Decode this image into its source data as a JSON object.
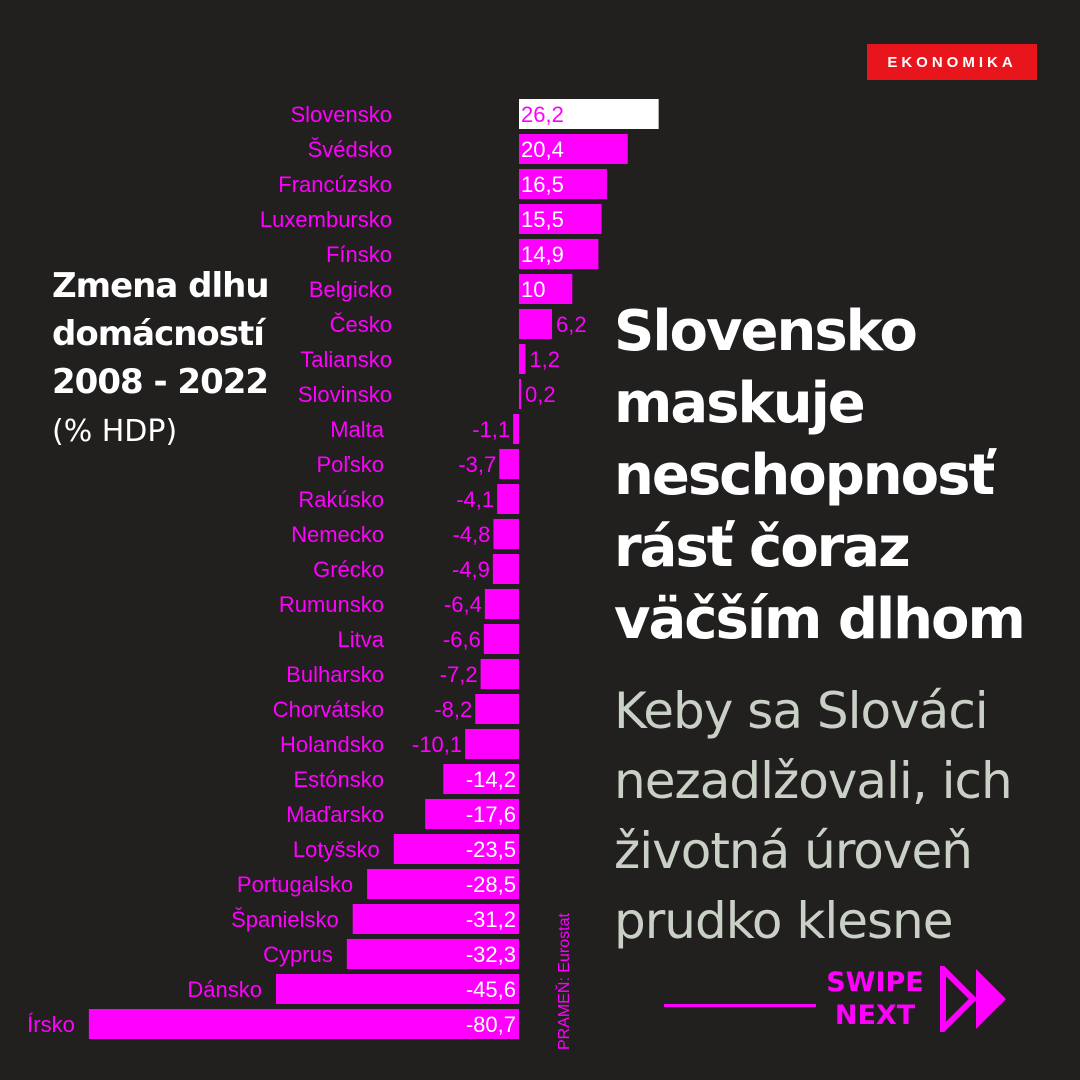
{
  "brand": {
    "badge": "EKONOMIKA",
    "badge_color": "#e8161c"
  },
  "chart_title_lines": [
    "Zmena dlhu",
    "domácností",
    "2008 - 2022"
  ],
  "chart_unit": "(% HDP)",
  "headline_lines": [
    "Slovensko",
    "maskuje",
    "neschopnosť",
    "rásť čoraz",
    "väčším dlhom"
  ],
  "subhead_lines": [
    "Keby sa Slováci",
    "nezadlžovali, ich",
    "životná úroveň",
    "prudko klesne"
  ],
  "source": "PRAMEŇ: Eurostat",
  "swipe": {
    "line1": "SWIPE",
    "line2": "NEXT",
    "icon": "double-play-arrow-icon"
  },
  "colors": {
    "background": "#221f1f",
    "bar": "#ff00ff",
    "highlight_bar": "#ffffff",
    "subhead": "#c9d1c6"
  },
  "chart_data": {
    "type": "bar",
    "orientation": "horizontal",
    "title": "Zmena dlhu domácností 2008 - 2022",
    "unit": "(% HDP)",
    "highlight": "Slovensko",
    "categories": [
      "Slovensko",
      "Švédsko",
      "Francúzsko",
      "Luxembursko",
      "Fínsko",
      "Belgicko",
      "Česko",
      "Taliansko",
      "Slovinsko",
      "Malta",
      "Poľsko",
      "Rakúsko",
      "Nemecko",
      "Grécko",
      "Rumunsko",
      "Litva",
      "Bulharsko",
      "Chorvátsko",
      "Holandsko",
      "Estónsko",
      "Maďarsko",
      "Lotyšsko",
      "Portugalsko",
      "Španielsko",
      "Cyprus",
      "Dánsko",
      "Írsko"
    ],
    "values": [
      26.2,
      20.4,
      16.5,
      15.5,
      14.9,
      10,
      6.2,
      1.2,
      0.2,
      -1.1,
      -3.7,
      -4.1,
      -4.8,
      -4.9,
      -6.4,
      -6.6,
      -7.2,
      -8.2,
      -10.1,
      -14.2,
      -17.6,
      -23.5,
      -28.5,
      -31.2,
      -32.3,
      -45.6,
      -80.7
    ],
    "value_labels": [
      "26,2",
      "20,4",
      "16,5",
      "15,5",
      "14,9",
      "10",
      "6,2",
      "1,2",
      "0,2",
      "-1,1",
      "-3,7",
      "-4,1",
      "-4,8",
      "-4,9",
      "-6,4",
      "-6,6",
      "-7,2",
      "-8,2",
      "-10,1",
      "-14,2",
      "-17,6",
      "-23,5",
      "-28,5",
      "-31,2",
      "-32,3",
      "-45,6",
      "-80,7"
    ],
    "source": "PRAMEŇ: Eurostat"
  }
}
